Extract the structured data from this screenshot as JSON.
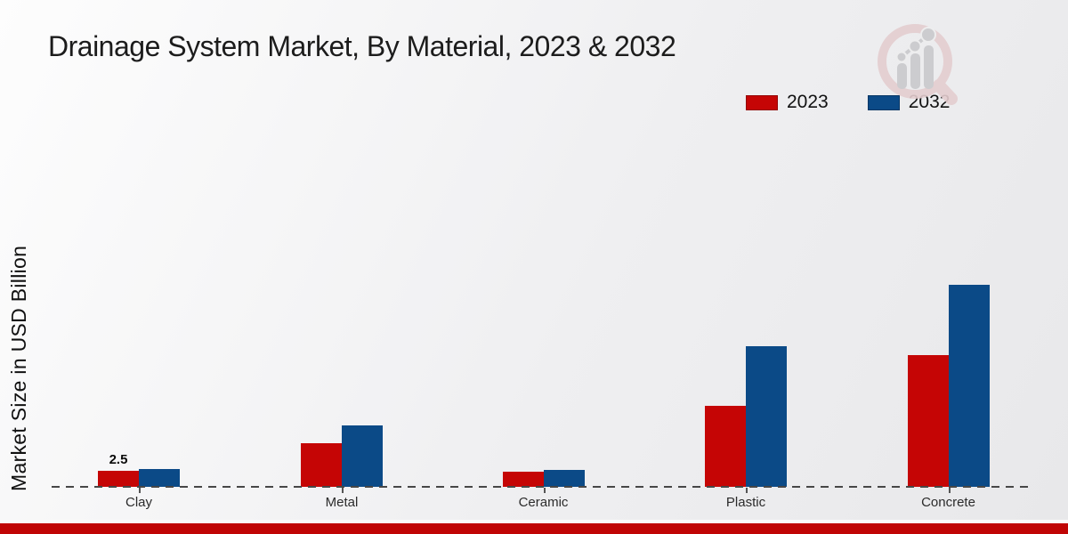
{
  "title": "Drainage System Market, By Material, 2023 & 2032",
  "ylabel": "Market Size in USD Billion",
  "colors": {
    "series_2023": "#c50505",
    "series_2032": "#0b4a87",
    "footer_banner": "#c00505",
    "axis_line": "#474747"
  },
  "icons": {
    "logo": "magnifier-bar-chart-logo"
  },
  "legend": {
    "position": "top-right",
    "items": [
      {
        "label": "2023",
        "color": "#c50505"
      },
      {
        "label": "2032",
        "color": "#0b4a87"
      }
    ]
  },
  "chart_data": {
    "type": "bar",
    "title": "Drainage System Market, By Material, 2023 & 2032",
    "xlabel": "",
    "ylabel": "Market Size in USD Billion",
    "categories": [
      "Clay",
      "Metal",
      "Ceramic",
      "Plastic",
      "Concrete"
    ],
    "series": [
      {
        "name": "2023",
        "color": "#c50505",
        "values": [
          2.5,
          7.0,
          2.4,
          12.9,
          21.0
        ]
      },
      {
        "name": "2032",
        "color": "#0b4a87",
        "values": [
          2.8,
          9.8,
          2.7,
          22.4,
          32.1
        ]
      }
    ],
    "ylim": [
      0,
      35
    ],
    "grid": false,
    "y_axis_ticks_visible": false,
    "legend_position": "top-right",
    "annotations": [
      {
        "text": "2.5",
        "category": "Clay",
        "series": "2023"
      }
    ]
  }
}
